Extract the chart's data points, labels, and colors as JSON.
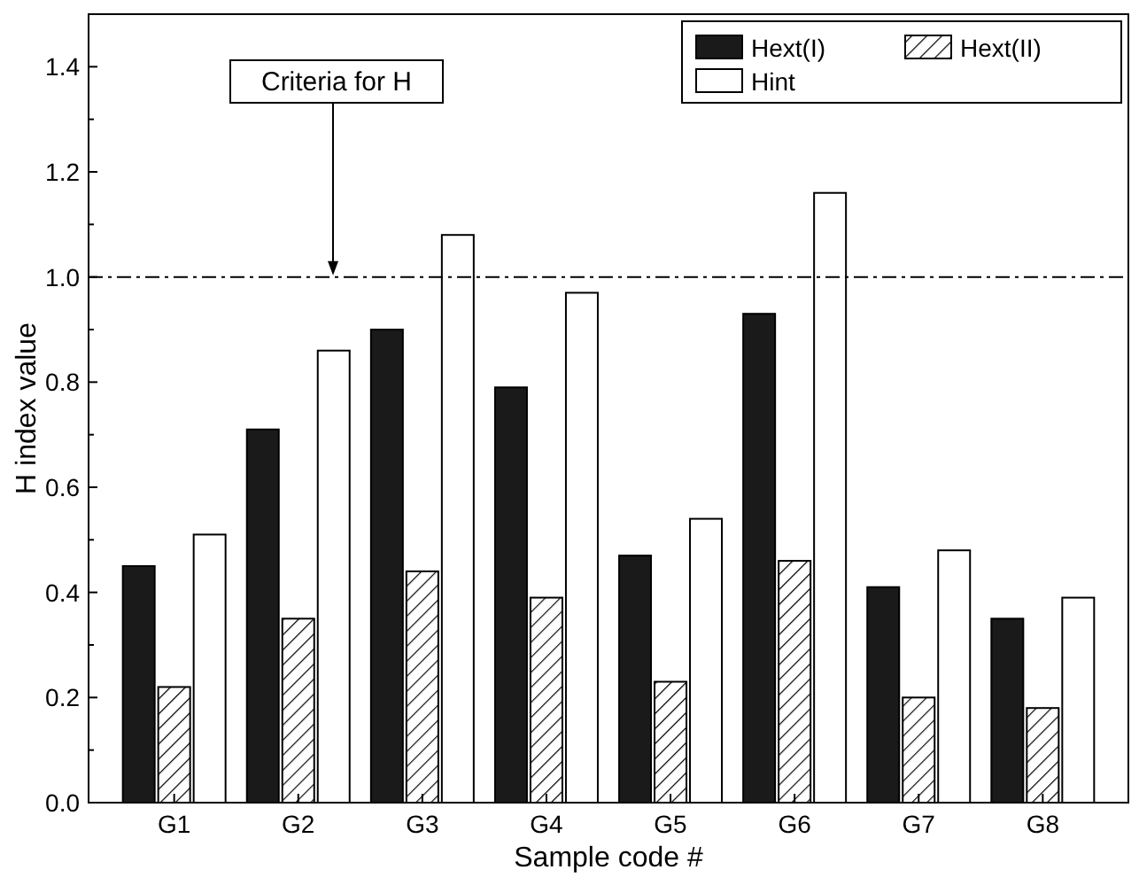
{
  "chart_data": {
    "type": "bar",
    "xlabel": "Sample code #",
    "ylabel": "H index value",
    "categories": [
      "G1",
      "G2",
      "G3",
      "G4",
      "G5",
      "G6",
      "G7",
      "G8"
    ],
    "series": [
      {
        "name": "Hext(I)",
        "color": "#1a1a1a",
        "values": [
          0.45,
          0.71,
          0.9,
          0.79,
          0.47,
          0.93,
          0.41,
          0.35
        ]
      },
      {
        "name": "Hext(II)",
        "color": "#000000",
        "values": [
          0.22,
          0.35,
          0.44,
          0.39,
          0.23,
          0.46,
          0.2,
          0.18
        ]
      },
      {
        "name": "Hint",
        "color": "#ffffff",
        "values": [
          0.51,
          0.86,
          1.08,
          0.97,
          0.54,
          1.16,
          0.48,
          0.39
        ]
      }
    ],
    "ylim": [
      0,
      1.5
    ],
    "yticks": [
      {
        "value": 0,
        "label": "0.0"
      },
      0.2,
      0.4,
      0.6,
      0.8,
      {
        "value": 1,
        "label": "1.0"
      },
      1.2,
      1.4
    ],
    "ref_lines": [
      {
        "axis": "y",
        "value": 1.0,
        "label": "Criteria for H",
        "line_style": "dashdot"
      }
    ],
    "legend": "top right",
    "grid": false
  }
}
